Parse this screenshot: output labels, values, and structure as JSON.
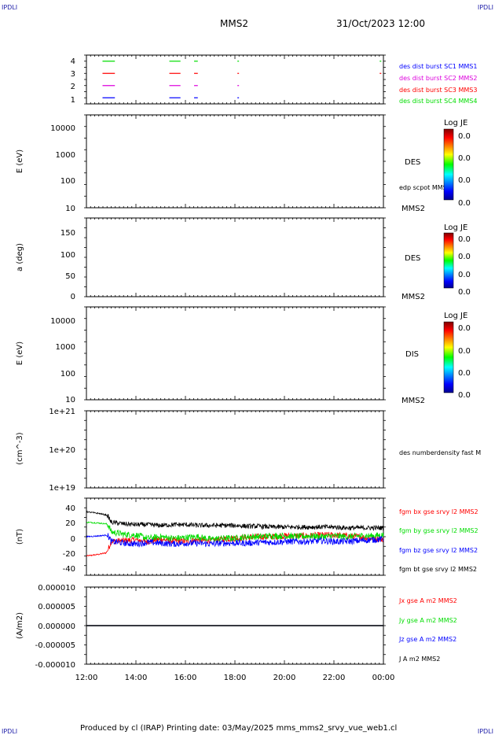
{
  "corner_labels": {
    "tl": "IPDLI",
    "tr": "IPDLI",
    "bl": "IPDLI",
    "br": "IPDLI"
  },
  "header": {
    "spacecraft": "MMS2",
    "datetime": "31/Oct/2023 12:00"
  },
  "footer": "Produced by cl (IRAP)   Printing date: 03/May/2025   mms_mms2_srvy_vue_web1.cl",
  "colors": {
    "black": "#000000",
    "red": "#ff0000",
    "green": "#00dd00",
    "blue": "#0000ff",
    "magenta": "#dd00dd",
    "frame": "#000000"
  },
  "time_axis": {
    "ticks": [
      "12:00",
      "14:00",
      "16:00",
      "18:00",
      "20:00",
      "22:00",
      "00:00"
    ],
    "start_hour": 12,
    "end_hour": 24
  },
  "colorbar": {
    "title": "Log JE",
    "tick_values": [
      "0.0",
      "0.0",
      "0.0",
      "0.0"
    ]
  },
  "panels": [
    {
      "id": "burst",
      "ylabel": "",
      "yticks": [
        "4",
        "3",
        "2",
        "1"
      ],
      "side_labels": [
        {
          "text": "des dist burst SC1 MMS1",
          "color": "#0000ff"
        },
        {
          "text": "des dist burst SC2 MMS2",
          "color": "#dd00dd"
        },
        {
          "text": "des dist burst SC3 MMS3",
          "color": "#ff0000"
        },
        {
          "text": "des dist burst SC4 MMS4",
          "color": "#00dd00"
        }
      ]
    },
    {
      "id": "des-energy",
      "ylabel": "E (eV)",
      "yticks": [
        "10000",
        "1000",
        "100",
        "10"
      ],
      "label": "DES",
      "sub_label": "edp scpot MMS2",
      "bottom_label": "MMS2"
    },
    {
      "id": "des-pitch",
      "ylabel": "a (deg)",
      "yticks": [
        "150",
        "100",
        "50",
        "0"
      ],
      "label": "DES",
      "bottom_label": "MMS2"
    },
    {
      "id": "dis-energy",
      "ylabel": "E (eV)",
      "yticks": [
        "10000",
        "1000",
        "100",
        "10"
      ],
      "label": "DIS",
      "bottom_label": "MMS2"
    },
    {
      "id": "density",
      "ylabel": "(cm^-3)",
      "yticks": [
        "1e+21",
        "1e+20",
        "1e+19"
      ],
      "side_label": "des numberdensity fast M"
    },
    {
      "id": "bfield",
      "ylabel": "(nT)",
      "yticks": [
        "40",
        "20",
        "0",
        "-20",
        "-40"
      ],
      "side_labels": [
        {
          "text": "fgm bx gse srvy l2 MMS2",
          "color": "#ff0000"
        },
        {
          "text": "fgm by gse srvy l2 MMS2",
          "color": "#00dd00"
        },
        {
          "text": "fgm bz gse srvy l2 MMS2",
          "color": "#0000ff"
        },
        {
          "text": "fgm bt gse srvy l2 MMS2",
          "color": "#000000"
        }
      ]
    },
    {
      "id": "current",
      "ylabel": "(A/m2)",
      "yticks": [
        "0.000010",
        "0.000005",
        "0.000000",
        "-0.000005",
        "-0.000010"
      ],
      "side_labels": [
        {
          "text": "Jx gse A m2 MMS2",
          "color": "#ff0000"
        },
        {
          "text": "Jy gse A m2 MMS2",
          "color": "#00dd00"
        },
        {
          "text": "Jz gse A m2 MMS2",
          "color": "#0000ff"
        },
        {
          "text": "J A m2 MMS2",
          "color": "#000000"
        }
      ]
    }
  ],
  "chart_data": [
    {
      "type": "scatter",
      "panel": "burst",
      "x_unit": "hours UT",
      "ylim": [
        0.5,
        4.5
      ],
      "series": [
        {
          "name": "des dist burst SC1 MMS1",
          "y": 1,
          "color": "#0000ff",
          "intervals": [
            [
              12.65,
              13.15
            ],
            [
              15.35,
              15.8
            ],
            [
              16.35,
              16.5
            ],
            [
              18.1,
              18.15
            ]
          ]
        },
        {
          "name": "des dist burst SC2 MMS2",
          "y": 2,
          "color": "#dd00dd",
          "intervals": [
            [
              12.65,
              13.15
            ],
            [
              15.35,
              15.8
            ],
            [
              16.35,
              16.5
            ],
            [
              18.1,
              18.15
            ]
          ]
        },
        {
          "name": "des dist burst SC3 MMS3",
          "y": 3,
          "color": "#ff0000",
          "intervals": [
            [
              12.65,
              13.15
            ],
            [
              15.35,
              15.8
            ],
            [
              16.35,
              16.5
            ],
            [
              18.1,
              18.15
            ],
            [
              23.85,
              23.88
            ]
          ]
        },
        {
          "name": "des dist burst SC4 MMS4",
          "y": 4,
          "color": "#00dd00",
          "intervals": [
            [
              12.65,
              13.15
            ],
            [
              15.35,
              15.8
            ],
            [
              16.35,
              16.5
            ],
            [
              18.1,
              18.15
            ],
            [
              23.85,
              23.88
            ]
          ]
        }
      ]
    },
    {
      "type": "line",
      "panel": "bfield",
      "x_unit": "hours UT",
      "ylabel": "(nT)",
      "ylim": [
        -48,
        48
      ],
      "x": [
        12.0,
        12.5,
        12.8,
        12.9,
        13.0,
        13.5,
        14.0,
        14.5,
        15.0,
        15.5,
        16.0,
        16.5,
        17.0,
        17.5,
        18.0,
        18.5,
        19.0,
        19.5,
        20.0,
        20.5,
        21.0,
        21.5,
        22.0,
        22.5,
        23.0,
        23.5,
        24.0
      ],
      "series": [
        {
          "name": "fgm bx gse srvy l2 MMS2",
          "color": "#ff0000",
          "values": [
            -24,
            -22,
            -20,
            -14,
            -6,
            -5,
            -4,
            -6,
            -3,
            -5,
            -6,
            -4,
            -5,
            -3,
            -2,
            -1,
            0,
            0,
            1,
            1,
            1,
            2,
            2,
            1,
            0,
            -2,
            -3
          ]
        },
        {
          "name": "fgm by gse srvy l2 MMS2",
          "color": "#00dd00",
          "values": [
            18,
            17,
            16,
            14,
            6,
            3,
            2,
            -2,
            0,
            -2,
            -1,
            0,
            -3,
            -2,
            -2,
            0,
            0,
            1,
            1,
            0,
            1,
            0,
            1,
            0,
            1,
            1,
            2
          ]
        },
        {
          "name": "fgm bz gse srvy l2 MMS2",
          "color": "#0000ff",
          "values": [
            0,
            1,
            2,
            0,
            -6,
            -8,
            -9,
            -7,
            -8,
            -9,
            -8,
            -8,
            -9,
            -8,
            -8,
            -8,
            -7,
            -7,
            -6,
            -6,
            -6,
            -5,
            -6,
            -6,
            -5,
            -4,
            -3
          ]
        },
        {
          "name": "fgm bt gse srvy l2 MMS2",
          "color": "#000000",
          "values": [
            31,
            29,
            27,
            24,
            18,
            16,
            15,
            15,
            14,
            15,
            15,
            14,
            14,
            14,
            14,
            13,
            13,
            12,
            12,
            12,
            12,
            12,
            12,
            11,
            11,
            11,
            11
          ]
        }
      ]
    },
    {
      "type": "line",
      "panel": "current",
      "x_unit": "hours UT",
      "ylabel": "(A/m2)",
      "ylim": [
        -1e-05,
        1e-05
      ],
      "x": [
        12,
        14,
        16,
        18,
        20,
        22,
        24
      ],
      "series": [
        {
          "name": "Jx gse A m2 MMS2",
          "color": "#ff0000",
          "values": [
            0,
            0,
            0,
            0,
            0,
            0,
            0
          ]
        },
        {
          "name": "Jy gse A m2 MMS2",
          "color": "#00dd00",
          "values": [
            0,
            0,
            0,
            0,
            0,
            0,
            0
          ]
        },
        {
          "name": "Jz gse A m2 MMS2",
          "color": "#0000ff",
          "values": [
            0,
            0,
            0,
            0,
            0,
            0,
            0
          ]
        },
        {
          "name": "J A m2 MMS2",
          "color": "#000000",
          "values": [
            0,
            0,
            0,
            0,
            0,
            0,
            0
          ]
        }
      ]
    }
  ]
}
